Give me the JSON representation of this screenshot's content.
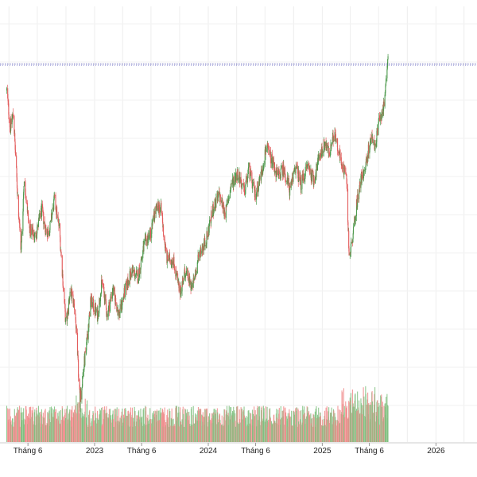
{
  "chart_data": {
    "type": "candlestick",
    "x_tick_labels": [
      "Tháng 6",
      "2023",
      "Tháng 6",
      "2024",
      "Tháng 6",
      "2025",
      "Tháng 6",
      "2026",
      "T"
    ],
    "x_tick_dates": [
      "2022-06-01",
      "2023-01-01",
      "2023-06-01",
      "2024-01-01",
      "2024-06-01",
      "2025-01-01",
      "2025-06-01",
      "2026-01-01",
      "2026-06-01"
    ],
    "reference_line": {
      "value": 1.0
    },
    "price_range": [
      0,
      1.15
    ],
    "price_keypoints": [
      [
        "2022-03-25",
        0.93
      ],
      [
        "2022-04-05",
        0.83
      ],
      [
        "2022-04-15",
        0.87
      ],
      [
        "2022-04-28",
        0.66
      ],
      [
        "2022-05-10",
        0.5
      ],
      [
        "2022-05-20",
        0.7
      ],
      [
        "2022-06-05",
        0.56
      ],
      [
        "2022-06-25",
        0.54
      ],
      [
        "2022-07-15",
        0.61
      ],
      [
        "2022-07-30",
        0.55
      ],
      [
        "2022-08-10",
        0.56
      ],
      [
        "2022-08-25",
        0.64
      ],
      [
        "2022-09-10",
        0.56
      ],
      [
        "2022-10-01",
        0.3
      ],
      [
        "2022-10-15",
        0.4
      ],
      [
        "2022-11-01",
        0.32
      ],
      [
        "2022-11-15",
        0.1
      ],
      [
        "2022-12-05",
        0.25
      ],
      [
        "2022-12-20",
        0.37
      ],
      [
        "2023-01-10",
        0.33
      ],
      [
        "2023-01-25",
        0.42
      ],
      [
        "2023-02-10",
        0.33
      ],
      [
        "2023-02-28",
        0.4
      ],
      [
        "2023-03-20",
        0.33
      ],
      [
        "2023-04-10",
        0.4
      ],
      [
        "2023-05-01",
        0.45
      ],
      [
        "2023-05-20",
        0.43
      ],
      [
        "2023-06-10",
        0.52
      ],
      [
        "2023-06-30",
        0.55
      ],
      [
        "2023-07-15",
        0.61
      ],
      [
        "2023-08-01",
        0.62
      ],
      [
        "2023-08-20",
        0.48
      ],
      [
        "2023-09-10",
        0.48
      ],
      [
        "2023-10-01",
        0.39
      ],
      [
        "2023-10-20",
        0.45
      ],
      [
        "2023-11-10",
        0.4
      ],
      [
        "2023-12-05",
        0.5
      ],
      [
        "2023-12-25",
        0.53
      ],
      [
        "2024-01-15",
        0.61
      ],
      [
        "2024-02-05",
        0.65
      ],
      [
        "2024-02-25",
        0.6
      ],
      [
        "2024-03-15",
        0.68
      ],
      [
        "2024-04-05",
        0.71
      ],
      [
        "2024-04-25",
        0.66
      ],
      [
        "2024-05-10",
        0.72
      ],
      [
        "2024-05-30",
        0.65
      ],
      [
        "2024-06-20",
        0.71
      ],
      [
        "2024-07-05",
        0.78
      ],
      [
        "2024-07-25",
        0.74
      ],
      [
        "2024-08-10",
        0.7
      ],
      [
        "2024-08-30",
        0.72
      ],
      [
        "2024-09-20",
        0.66
      ],
      [
        "2024-10-05",
        0.73
      ],
      [
        "2024-10-25",
        0.68
      ],
      [
        "2024-11-15",
        0.73
      ],
      [
        "2024-12-05",
        0.69
      ],
      [
        "2024-12-25",
        0.76
      ],
      [
        "2025-01-10",
        0.79
      ],
      [
        "2025-01-25",
        0.76
      ],
      [
        "2025-02-10",
        0.82
      ],
      [
        "2025-02-25",
        0.76
      ],
      [
        "2025-03-10",
        0.72
      ],
      [
        "2025-03-20",
        0.69
      ],
      [
        "2025-03-28",
        0.49
      ],
      [
        "2025-04-08",
        0.53
      ],
      [
        "2025-04-20",
        0.62
      ],
      [
        "2025-05-05",
        0.69
      ],
      [
        "2025-05-20",
        0.73
      ],
      [
        "2025-06-05",
        0.8
      ],
      [
        "2025-06-20",
        0.78
      ],
      [
        "2025-07-05",
        0.86
      ],
      [
        "2025-07-20",
        0.89
      ],
      [
        "2025-07-31",
        1.02
      ]
    ],
    "volume_range": [
      0,
      1
    ],
    "volume_note": "daily volume bars, green and red"
  }
}
